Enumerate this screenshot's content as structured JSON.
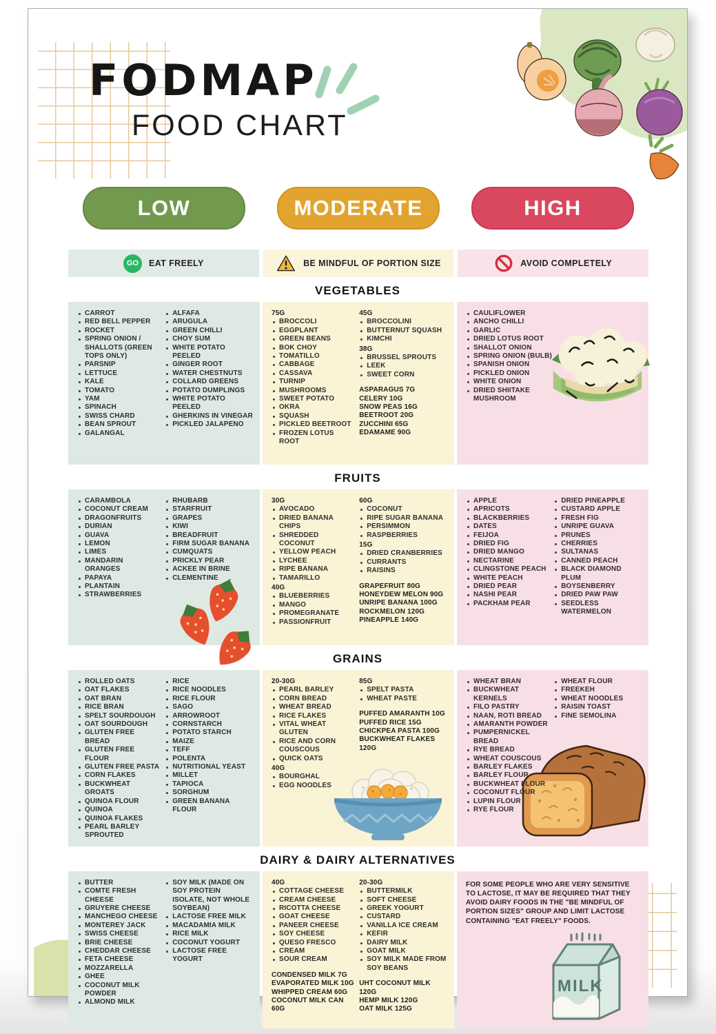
{
  "header": {
    "title": "FODMAP",
    "subtitle": "FOOD CHART"
  },
  "pills": [
    {
      "id": "low",
      "label": "LOW",
      "color": "#72994d"
    },
    {
      "id": "moderate",
      "label": "MODERATE",
      "color": "#e2a42f"
    },
    {
      "id": "high",
      "label": "HIGH",
      "color": "#d9485f"
    }
  ],
  "legend": {
    "items": [
      {
        "id": "low",
        "icon": "go-badge-icon",
        "badge": "GO",
        "label": "EAT FREELY",
        "strip_color": "#e2eae5"
      },
      {
        "id": "moderate",
        "icon": "warning-triangle-icon",
        "label": "BE MINDFUL OF PORTION SIZE",
        "strip_color": "#faf4da"
      },
      {
        "id": "high",
        "icon": "no-entry-icon",
        "label": "AVOID COMPLETELY",
        "strip_color": "#f8e3e8"
      }
    ]
  },
  "colors": {
    "low_panel": "#dfe9e3",
    "moderate_panel": "#faf3d6",
    "high_panel": "#f8dfe5",
    "go_badge": "#29b765",
    "grid_lines": "#e8c99c",
    "text": "#2e2e2e"
  },
  "illustrations": {
    "milk_label": "MILK"
  },
  "sections": [
    {
      "id": "vegetables",
      "title": "VEGETABLES",
      "panels": [
        {
          "level": "low",
          "columns": [
            [
              {
                "b": [
                  "CARROT",
                  "RED BELL PEPPER",
                  "ROCKET",
                  "SPRING ONION / SHALLOTS (GREEN TOPS ONLY)",
                  "PARSNIP",
                  "LETTUCE",
                  "KALE",
                  "TOMATO",
                  "YAM",
                  "SPINACH",
                  "SWISS CHARD",
                  "BEAN SPROUT",
                  "GALANGAL"
                ]
              }
            ],
            [
              {
                "b": [
                  "ALFAFA",
                  "ARUGULA",
                  "GREEN CHILLI",
                  "CHOY SUM",
                  "WHITE POTATO PEELED",
                  "GINGER ROOT",
                  "WATER CHESTNUTS",
                  "COLLARD GREENS",
                  "POTATO DUMPLINGS",
                  "WHITE POTATO PEELED",
                  "GHERKINS IN VINEGAR",
                  "PICKLED JALAPENO"
                ]
              }
            ]
          ]
        },
        {
          "level": "moderate",
          "columns": [
            [
              {
                "h": "75G"
              },
              {
                "b": [
                  "BROCCOLI",
                  "EGGPLANT",
                  "GREEN BEANS",
                  "BOK CHOY",
                  "TOMATILLO",
                  "CABBAGE",
                  "CASSAVA",
                  "TURNIP",
                  "MUSHROOMS",
                  "SWEET POTATO",
                  "OKRA",
                  "SQUASH",
                  "PICKLED BEETROOT",
                  "FROZEN LOTUS ROOT"
                ]
              }
            ],
            [
              {
                "h": "45G"
              },
              {
                "b": [
                  "BROCCOLINI",
                  "BUTTERNUT SQUASH",
                  "KIMCHI"
                ]
              },
              {
                "h": "38G"
              },
              {
                "b": [
                  "BRUSSEL SPROUTS",
                  "LEEK",
                  "SWEET CORN"
                ]
              },
              {
                "p": [
                  "ASPARAGUS 7G",
                  "CELERY 10G",
                  "SNOW PEAS 16G",
                  "BEETROOT 20G",
                  "ZUCCHINI 65G",
                  "EDAMAME 90G"
                ]
              }
            ]
          ]
        },
        {
          "level": "high",
          "illustration": "cauliflower",
          "columns": [
            [
              {
                "b": [
                  "CAULIFLOWER",
                  "ANCHO CHILLI",
                  "GARLIC",
                  "DRIED LOTUS ROOT",
                  "SHALLOT ONION",
                  "SPRING ONION (BULB)",
                  "SPANISH ONION",
                  "PICKLED ONION",
                  "WHITE ONION",
                  "DRIED SHIITAKE MUSHROOM"
                ]
              }
            ]
          ]
        }
      ]
    },
    {
      "id": "fruits",
      "title": "FRUITS",
      "panels": [
        {
          "level": "low",
          "illustration": "strawberries",
          "columns": [
            [
              {
                "b": [
                  "CARAMBOLA",
                  "COCONUT CREAM",
                  "DRAGONFRUITS",
                  "DURIAN",
                  "GUAVA",
                  "LEMON",
                  "LIMES",
                  "MANDARIN ORANGES",
                  "PAPAYA",
                  "PLANTAIN",
                  "STRAWBERRIES"
                ]
              }
            ],
            [
              {
                "b": [
                  "RHUBARB",
                  "STARFRUIT",
                  "GRAPES",
                  "KIWI",
                  "BREADFRUIT",
                  "FIRM SUGAR BANANA",
                  "CUMQUATS",
                  "PRICKLY PEAR",
                  "ACKEE IN BRINE",
                  "CLEMENTINE"
                ]
              }
            ]
          ]
        },
        {
          "level": "moderate",
          "columns": [
            [
              {
                "h": "30G"
              },
              {
                "b": [
                  "AVOCADO",
                  "DRIED BANANA CHIPS",
                  "SHREDDED COCONUT",
                  "YELLOW PEACH",
                  "LYCHEE",
                  "RIPE BANANA",
                  "TAMARILLO"
                ]
              },
              {
                "h": "40G"
              },
              {
                "b": [
                  "BLUEBERRIES",
                  "MANGO",
                  "PROMEGRANATE",
                  "PASSIONFRUIT"
                ]
              }
            ],
            [
              {
                "h": "60G"
              },
              {
                "b": [
                  "COCONUT",
                  "RIPE SUGAR BANANA",
                  "PERSIMMON",
                  "RASPBERRIES"
                ]
              },
              {
                "h": "15G"
              },
              {
                "b": [
                  "DRIED CRANBERRIES",
                  "CURRANTS",
                  "RAISINS"
                ]
              },
              {
                "p": [
                  "GRAPEFRUIT 80G",
                  "HONEYDEW MELON 90G",
                  "UNRIPE BANANA 100G",
                  "ROCKMELON 120G",
                  "PINEAPPLE 140G"
                ]
              }
            ]
          ]
        },
        {
          "level": "high",
          "columns": [
            [
              {
                "b": [
                  "APPLE",
                  "APRICOTS",
                  "BLACKBERRIES",
                  "DATES",
                  "FEIJOA",
                  "DRIED FIG",
                  "DRIED MANGO",
                  "NECTARINE",
                  "CLINGSTONE PEACH",
                  "WHITE PEACH",
                  "DRIED PEAR",
                  "NASHI PEAR",
                  "PACKHAM PEAR"
                ]
              }
            ],
            [
              {
                "b": [
                  "DRIED PINEAPPLE",
                  "CUSTARD APPLE",
                  "FRESH FIG",
                  "UNRIPE GUAVA",
                  "PRUNES",
                  "CHERRIES",
                  "SULTANAS",
                  "CANNED PEACH",
                  "BLACK DIAMOND PLUM",
                  "BOYSENBERRY",
                  "DRIED PAW PAW",
                  "SEEDLESS WATERMELON"
                ]
              }
            ]
          ]
        }
      ]
    },
    {
      "id": "grains",
      "title": "GRAINS",
      "panels": [
        {
          "level": "low",
          "columns": [
            [
              {
                "b": [
                  "ROLLED OATS",
                  "OAT FLAKES",
                  "OAT BRAN",
                  "RICE BRAN",
                  "SPELT SOURDOUGH",
                  "OAT SOURDOUGH",
                  "GLUTEN FREE BREAD",
                  "GLUTEN FREE FLOUR",
                  "GLUTEN FREE PASTA",
                  "CORN FLAKES",
                  "BUCKWHEAT GROATS",
                  "QUINOA FLOUR",
                  "QUINOA",
                  "QUINOA FLAKES",
                  "PEARL BARLEY SPROUTED"
                ]
              }
            ],
            [
              {
                "b": [
                  "RICE",
                  "RICE NOODLES",
                  "RICE FLOUR",
                  "SAGO",
                  "ARROWROOT",
                  "CORNSTARCH",
                  "POTATO STARCH",
                  "MAIZE",
                  "TEFF",
                  "POLENTA",
                  "NUTRITIONAL YEAST",
                  "MILLET",
                  "TAPIOCA",
                  "SORGHUM",
                  "GREEN BANANA FLOUR"
                ]
              }
            ]
          ]
        },
        {
          "level": "moderate",
          "illustration": "rice-bowl",
          "columns": [
            [
              {
                "h": "20-30G"
              },
              {
                "b": [
                  "PEARL BARLEY",
                  "CORN BREAD",
                  "WHEAT BREAD",
                  "RICE FLAKES",
                  "VITAL WHEAT GLUTEN",
                  "RICE AND CORN COUSCOUS",
                  "QUICK OATS"
                ]
              },
              {
                "h": "40G"
              },
              {
                "b": [
                  "BOURGHAL",
                  "EGG NOODLES"
                ]
              }
            ],
            [
              {
                "h": "85G"
              },
              {
                "b": [
                  "SPELT PASTA",
                  "WHEAT PASTE"
                ]
              },
              {
                "p": [
                  "PUFFED AMARANTH 10G",
                  "PUFFED RICE 15G",
                  "CHICKPEA PASTA 100G",
                  "BUCKWHEAT FLAKES 120G"
                ]
              }
            ]
          ]
        },
        {
          "level": "high",
          "illustration": "bread",
          "columns": [
            [
              {
                "b": [
                  "WHEAT BRAN",
                  "BUCKWHEAT KERNELS",
                  "FILO PASTRY",
                  "NAAN, ROTI BREAD",
                  "AMARANTH POWDER",
                  "PUMPERNICKEL BREAD",
                  "RYE BREAD",
                  "WHEAT COUSCOUS",
                  "BARLEY FLAKES",
                  "BARLEY FLOUR",
                  "BUCKWHEAT FLOUR",
                  "COCONUT FLOUR",
                  "LUPIN FLOUR",
                  "RYE FLOUR"
                ]
              }
            ],
            [
              {
                "b": [
                  "WHEAT FLOUR",
                  "FREEKEH",
                  "WHEAT NOODLES",
                  "RAISIN TOAST",
                  "FINE SEMOLINA"
                ]
              }
            ]
          ]
        }
      ]
    },
    {
      "id": "dairy",
      "title": "DAIRY & DAIRY ALTERNATIVES",
      "panels": [
        {
          "level": "low",
          "columns": [
            [
              {
                "b": [
                  "BUTTER",
                  "COMTE FRESH CHEESE",
                  "GRUYERE CHEESE",
                  "MANCHEGO CHEESE",
                  "MONTEREY JACK",
                  "SWISS CHEESE",
                  "BRIE CHEESE",
                  "CHEDDAR CHEESE",
                  "FETA CHEESE",
                  "MOZZARELLA",
                  "GHEE",
                  "COCONUT MILK POWDER",
                  "ALMOND MILK"
                ]
              }
            ],
            [
              {
                "b": [
                  "SOY MILK (MADE ON SOY PROTEIN ISOLATE, NOT WHOLE SOYBEAN)",
                  "LACTOSE FREE MILK",
                  "MACADAMIA MILK",
                  "RICE MILK",
                  "COCONUT YOGURT",
                  "LACTOSE FREE YOGURT"
                ]
              }
            ]
          ]
        },
        {
          "level": "moderate",
          "columns": [
            [
              {
                "h": "40G"
              },
              {
                "b": [
                  "COTTAGE CHEESE",
                  "CREAM CHEESE",
                  "RICOTTA CHEESE",
                  "GOAT CHEESE",
                  "PANEER CHEESE",
                  "SOY CHEESE",
                  "QUESO FRESCO",
                  "CREAM",
                  "SOUR CREAM"
                ]
              },
              {
                "p": [
                  "CONDENSED MILK 7G",
                  "EVAPORATED MILK 10G",
                  "WHIPPED CREAM 60G",
                  "COCONUT MILK CAN 60G"
                ]
              }
            ],
            [
              {
                "h": "20-30G"
              },
              {
                "b": [
                  "BUTTERMILK",
                  "SOFT CHEESE",
                  "GREEK YOGURT",
                  "CUSTARD",
                  "VANILLA ICE CREAM",
                  "KEFIR",
                  "DAIRY MILK",
                  "GOAT MILK",
                  "SOY MILK MADE FROM SOY BEANS"
                ]
              },
              {
                "p": [
                  "UHT COCONUT MILK 120G",
                  "HEMP MILK 120G",
                  "OAT MILK 125G"
                ]
              }
            ]
          ]
        },
        {
          "level": "high",
          "illustration": "milk-carton",
          "text": "FOR SOME PEOPLE WHO ARE VERY SENSITIVE TO LACTOSE, IT MAY BE REQUIRED THAT THEY AVOID DAIRY FOODS IN THE \"BE MINDFUL OF PORTION SIZES\" GROUP AND LIMIT LACTOSE CONTAINING \"EAT FREELY\" FOODS."
        }
      ]
    }
  ]
}
